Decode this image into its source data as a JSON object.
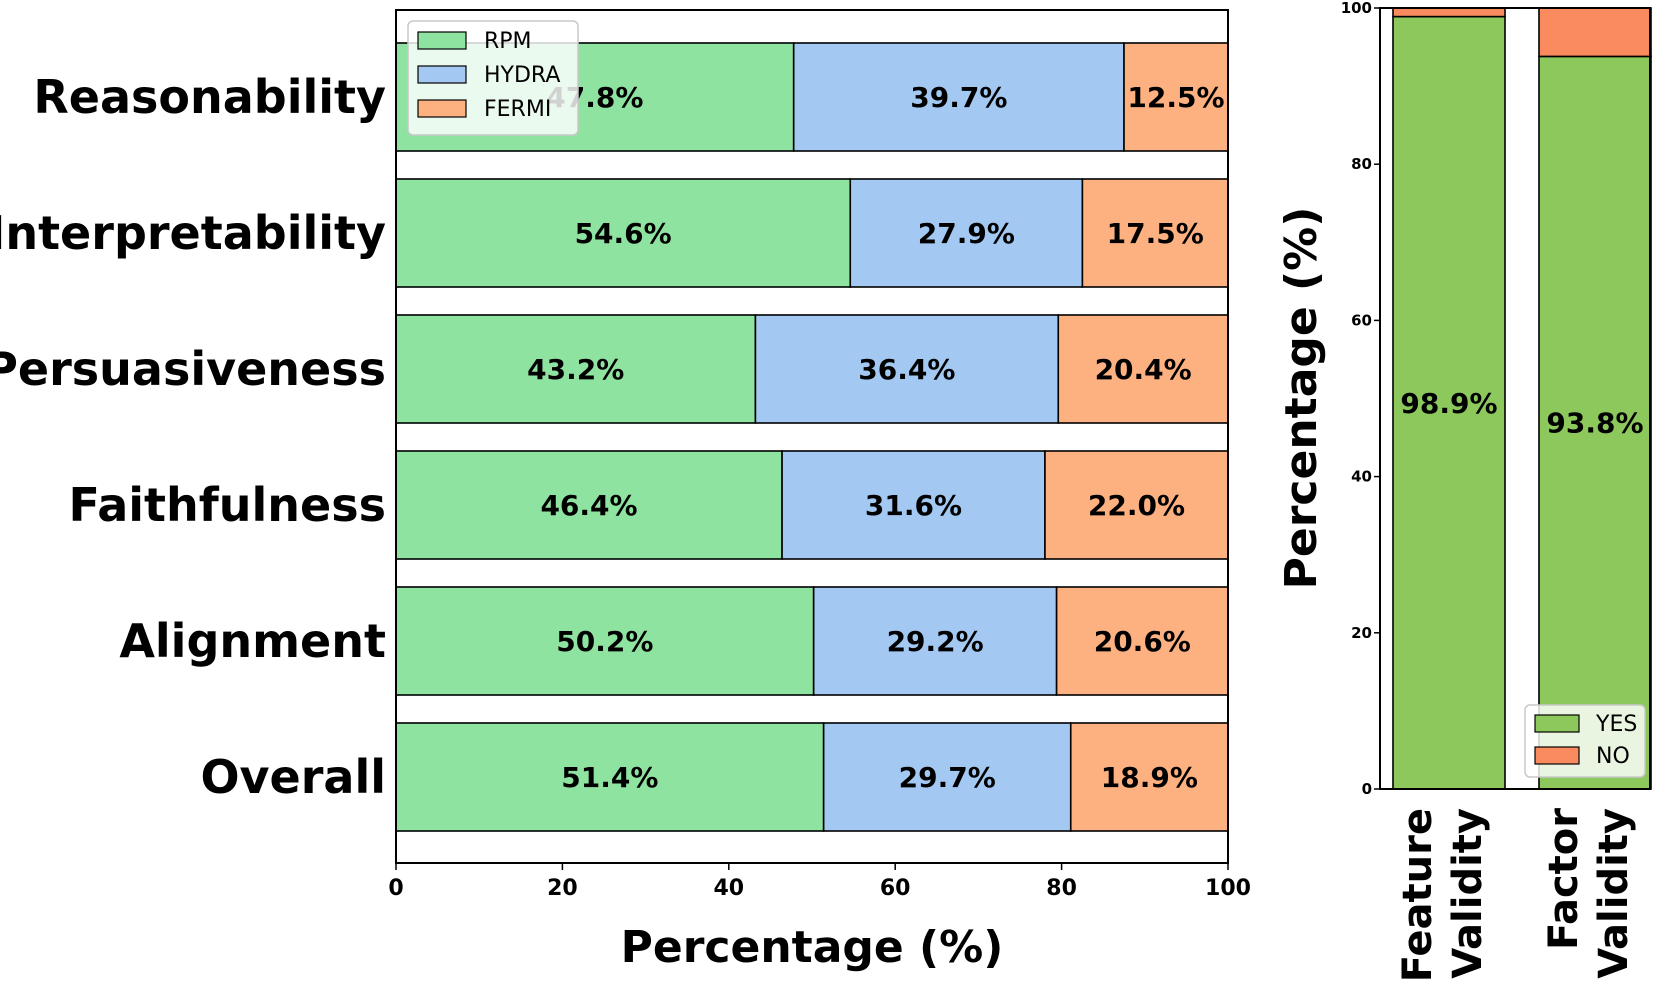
{
  "chart_data": [
    {
      "type": "bar",
      "orientation": "horizontal",
      "stacked": true,
      "categories": [
        "Reasonability",
        "Interpretability",
        "Persuasiveness",
        "Faithfulness",
        "Alignment",
        "Overall"
      ],
      "series": [
        {
          "name": "RPM",
          "values": [
            47.8,
            54.6,
            43.2,
            46.4,
            50.2,
            51.4
          ],
          "labels": [
            "47.8%",
            "54.6%",
            "43.2%",
            "46.4%",
            "50.2%",
            "51.4%"
          ],
          "color": "#8fe3a0"
        },
        {
          "name": "HYDRA",
          "values": [
            39.7,
            27.9,
            36.4,
            31.6,
            29.2,
            29.7
          ],
          "labels": [
            "39.7%",
            "27.9%",
            "36.4%",
            "31.6%",
            "29.2%",
            "29.7%"
          ],
          "color": "#a3c8f2"
        },
        {
          "name": "FERMI",
          "values": [
            12.5,
            17.5,
            20.4,
            22.0,
            20.6,
            18.9
          ],
          "labels": [
            "12.5%",
            "17.5%",
            "20.4%",
            "22.0%",
            "20.6%",
            "18.9%"
          ],
          "color": "#fdb080"
        }
      ],
      "xlabel": "Percentage (%)",
      "xlim": [
        0,
        100
      ],
      "xticks": [
        "0",
        "20",
        "40",
        "60",
        "80",
        "100"
      ],
      "legend": "top-left",
      "grid": false
    },
    {
      "type": "bar",
      "orientation": "vertical",
      "stacked": true,
      "categories": [
        "Feature Validity",
        "Factor Validity"
      ],
      "category_lines": [
        [
          "Feature",
          "Validity"
        ],
        [
          "Factor",
          "Validity"
        ]
      ],
      "series": [
        {
          "name": "YES",
          "values": [
            98.9,
            93.8
          ],
          "labels": [
            "98.9%",
            "93.8%"
          ],
          "color": "#8cc85c"
        },
        {
          "name": "NO",
          "values": [
            1.1,
            6.2
          ],
          "color": "#f98b5f"
        }
      ],
      "ylabel": "Percentage (%)",
      "ylim": [
        0,
        100
      ],
      "yticks": [
        "0",
        "20",
        "40",
        "60",
        "80",
        "100"
      ],
      "legend": "bottom-right",
      "grid": false
    }
  ]
}
